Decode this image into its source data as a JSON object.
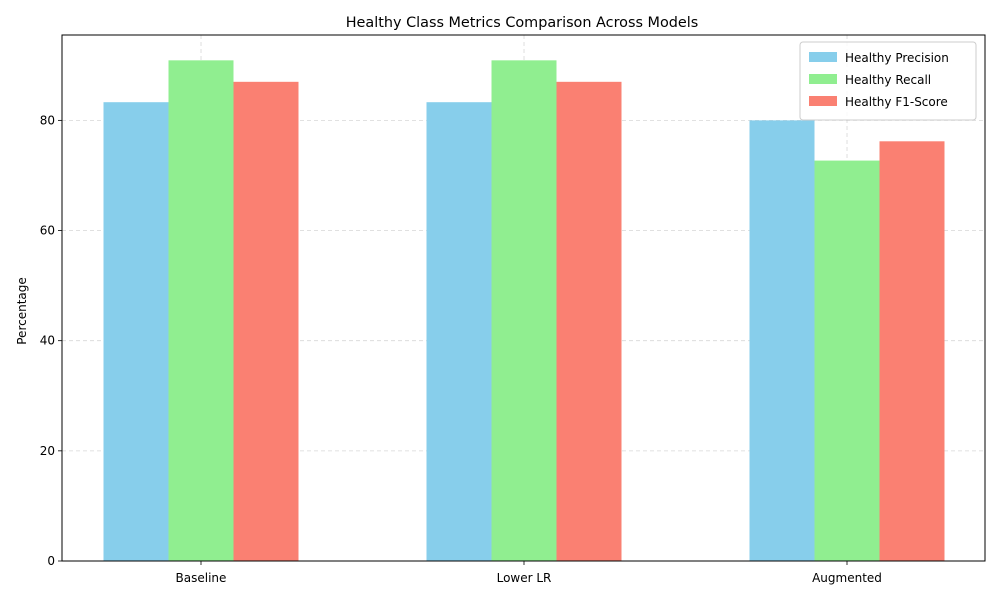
{
  "chart_data": {
    "type": "bar",
    "title": "Healthy Class Metrics Comparison Across Models",
    "xlabel": "",
    "ylabel": "Percentage",
    "categories": [
      "Baseline",
      "Lower LR",
      "Augmented"
    ],
    "series": [
      {
        "name": "Healthy Precision",
        "values": [
          83.3,
          83.3,
          80.0
        ],
        "color": "#87ceeb"
      },
      {
        "name": "Healthy Recall",
        "values": [
          90.9,
          90.9,
          72.7
        ],
        "color": "#90ee90"
      },
      {
        "name": "Healthy F1-Score",
        "values": [
          87.0,
          87.0,
          76.2
        ],
        "color": "#fa8072"
      }
    ],
    "ylim": [
      0,
      95.5
    ],
    "yticks": [
      0,
      20,
      40,
      60,
      80
    ],
    "grid": true,
    "legend_position": "top-right"
  }
}
